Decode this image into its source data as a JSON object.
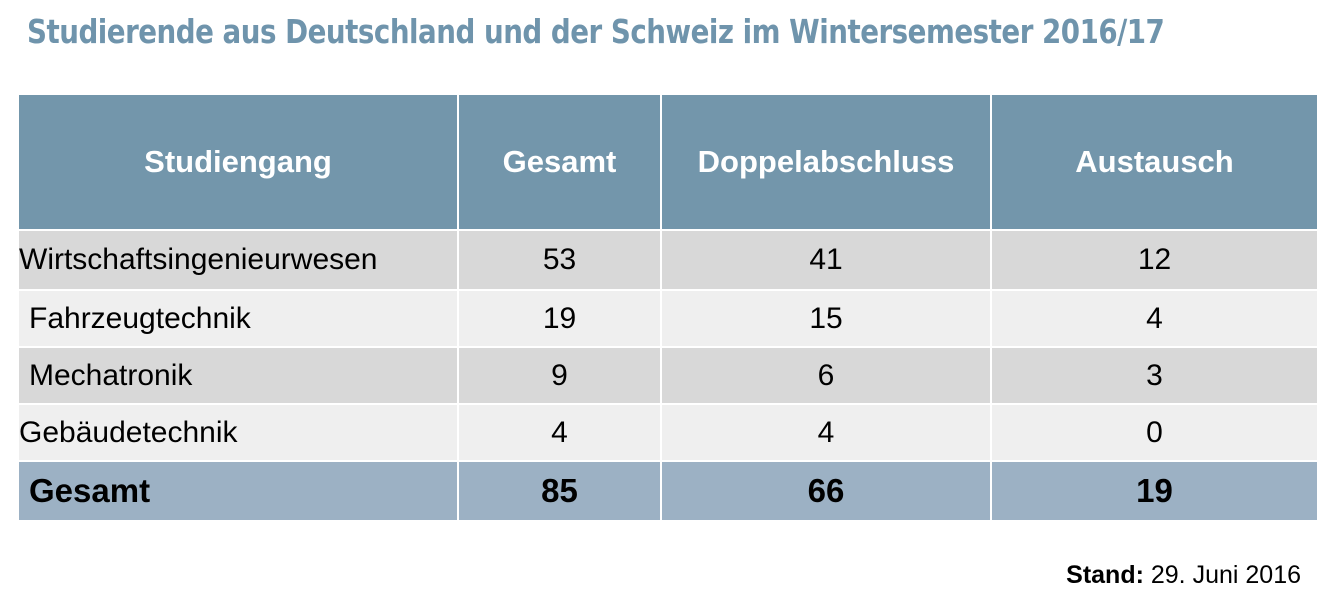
{
  "title": "Studierende aus Deutschland und der Schweiz im Wintersemester 2016/17",
  "table": {
    "headers": [
      "Studiengang",
      "Gesamt",
      "Doppelabschluss",
      "Austausch"
    ],
    "rows": [
      {
        "name": "Wirtschaftsingenieurwesen",
        "gesamt": "53",
        "doppel": "41",
        "austausch": "12"
      },
      {
        "name": "Fahrzeugtechnik",
        "gesamt": "19",
        "doppel": "15",
        "austausch": "4"
      },
      {
        "name": "Mechatronik",
        "gesamt": "9",
        "doppel": "6",
        "austausch": "3"
      },
      {
        "name": "Gebäudetechnik",
        "gesamt": "4",
        "doppel": "4",
        "austausch": "0"
      }
    ],
    "total": {
      "name": "Gesamt",
      "gesamt": "85",
      "doppel": "66",
      "austausch": "19"
    }
  },
  "footer": {
    "stand_label": "Stand:",
    "stand_value": "29. Juni 2016"
  },
  "colors": {
    "title": "#6f94ac",
    "header_bg": "#7396ab",
    "total_bg": "#9cb1c4",
    "row_dark": "#d8d8d8",
    "row_light": "#efefef"
  }
}
